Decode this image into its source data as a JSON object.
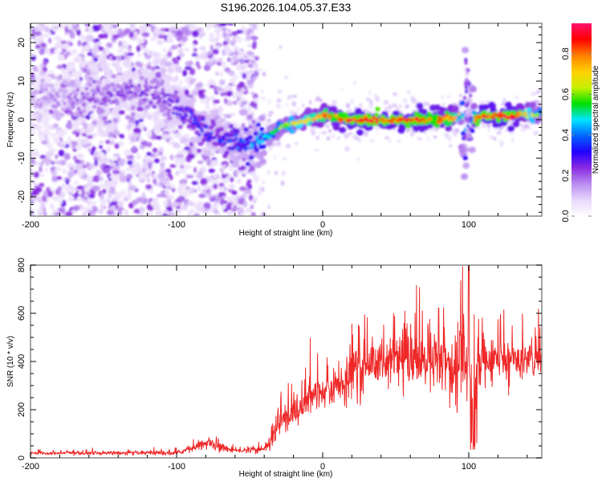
{
  "title": "S196.2026.104.05.37.E33",
  "chart_data": [
    {
      "type": "heatmap",
      "name": "spectrogram",
      "title": "",
      "xlabel": "Height of straight line (km)",
      "ylabel": "Frequency (Hz)",
      "xlim": [
        -200,
        150
      ],
      "ylim": [
        -25,
        25
      ],
      "x_ticks": [
        -200,
        -100,
        0,
        100
      ],
      "x_tick_labels": [
        "-200",
        "-100",
        "0",
        "100"
      ],
      "y_ticks": [
        -20,
        -10,
        0,
        10,
        20
      ],
      "y_tick_labels": [
        "-20",
        "-10",
        "0",
        "10",
        "20"
      ],
      "colorbar": {
        "label": "Normalized spectral amplitude",
        "range": [
          0,
          0.95
        ],
        "ticks": [
          0.0,
          0.2,
          0.4,
          0.6,
          0.8
        ],
        "tick_labels": [
          "0.0",
          "0.2",
          "0.4",
          "0.6",
          "0.8"
        ],
        "colormap": [
          "#ffffff",
          "#e8d8fb",
          "#b98cf0",
          "#8a2be2",
          "#2200ff",
          "#0066ff",
          "#00e5ff",
          "#00e000",
          "#c8f000",
          "#ffd000",
          "#ff8000",
          "#ff0000",
          "#ff1070"
        ]
      },
      "ridge": {
        "description": "dominant frequency track vs height",
        "x": [
          -200,
          -170,
          -150,
          -130,
          -110,
          -100,
          -90,
          -80,
          -70,
          -60,
          -50,
          -45,
          -40,
          -30,
          -20,
          -10,
          0,
          10,
          20,
          40,
          60,
          80,
          90,
          95,
          100,
          102,
          105,
          110,
          130,
          150
        ],
        "y": [
          6,
          5,
          6,
          7,
          5,
          4,
          0,
          -3,
          -5,
          -6,
          -7,
          -6,
          -5,
          -2,
          -1,
          0,
          1,
          0.5,
          0,
          0,
          0,
          0,
          0.5,
          1,
          -3,
          -1,
          0.5,
          1,
          1,
          1.5
        ],
        "amplitude": [
          0.15,
          0.2,
          0.25,
          0.25,
          0.25,
          0.3,
          0.35,
          0.35,
          0.35,
          0.4,
          0.45,
          0.45,
          0.5,
          0.6,
          0.7,
          0.75,
          0.8,
          0.85,
          0.9,
          0.9,
          0.9,
          0.85,
          0.8,
          0.6,
          0.35,
          0.4,
          0.9,
          0.9,
          0.9,
          0.6
        ]
      },
      "noise_extent_km": [
        -200,
        -45
      ]
    },
    {
      "type": "line",
      "name": "snr",
      "title": "",
      "xlabel": "Height of straight line (km)",
      "ylabel": "SNR (10 * v/v)",
      "xlim": [
        -200,
        150
      ],
      "ylim": [
        0,
        800
      ],
      "x_ticks": [
        -200,
        -100,
        0,
        100
      ],
      "x_tick_labels": [
        "-200",
        "-100",
        "0",
        "100"
      ],
      "y_ticks": [
        0,
        200,
        400,
        600,
        800
      ],
      "y_tick_labels": [
        "0",
        "200",
        "400",
        "600",
        "800"
      ],
      "color": "#ef2828",
      "envelope": {
        "description": "approximate baseline SNR vs height",
        "x": [
          -200,
          -150,
          -100,
          -90,
          -80,
          -70,
          -60,
          -40,
          -35,
          -30,
          -20,
          -10,
          0,
          10,
          20,
          30,
          50,
          80,
          95,
          100,
          103,
          106,
          110,
          130,
          150
        ],
        "y": [
          20,
          20,
          20,
          40,
          60,
          45,
          30,
          35,
          80,
          150,
          180,
          250,
          260,
          300,
          350,
          390,
          400,
          400,
          390,
          380,
          150,
          380,
          400,
          410,
          410
        ],
        "spike_amplitude": [
          10,
          10,
          12,
          20,
          35,
          25,
          15,
          20,
          60,
          90,
          100,
          110,
          100,
          120,
          140,
          150,
          150,
          180,
          200,
          220,
          250,
          180,
          150,
          120,
          100
        ]
      },
      "peak": {
        "x": 100,
        "y": 800
      },
      "dip": {
        "x": 103,
        "y": 15
      }
    }
  ]
}
